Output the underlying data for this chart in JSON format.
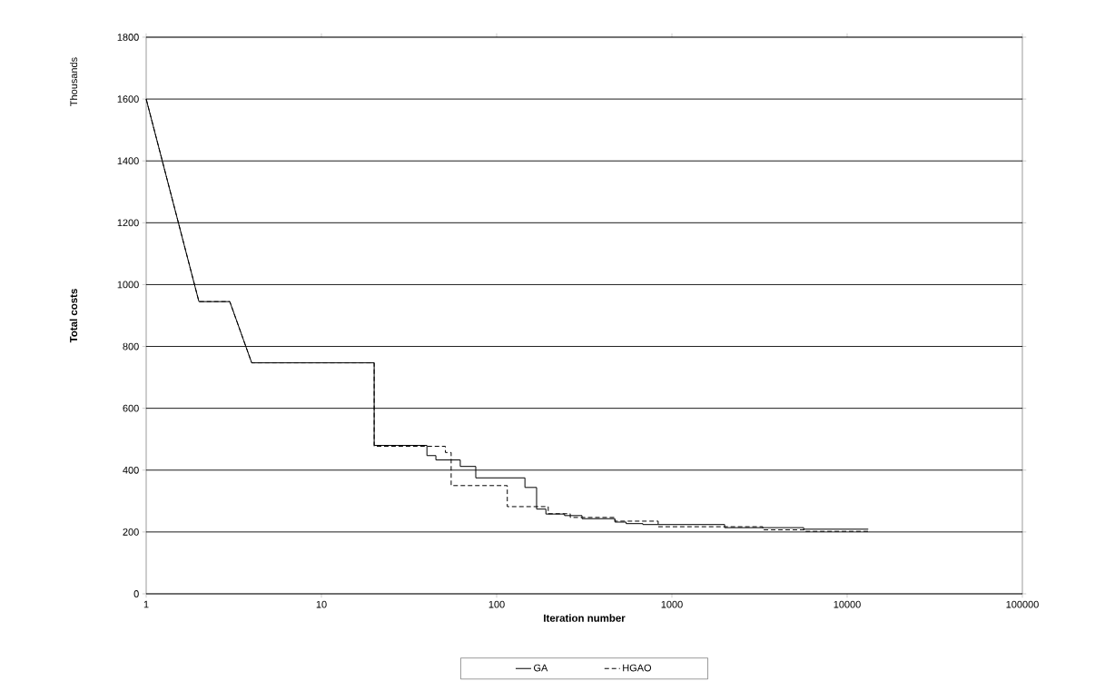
{
  "chart_data": {
    "type": "line",
    "xlabel": "Iteration number",
    "ylabel": "Total costs",
    "annotations": [
      "Thousands"
    ],
    "log": "x",
    "xlim": [
      1,
      100000
    ],
    "xticks": [
      1,
      10,
      100,
      1000,
      10000,
      100000
    ],
    "ylim": [
      0,
      1800
    ],
    "yticks": [
      0,
      200,
      400,
      600,
      800,
      1000,
      1200,
      1400,
      1600,
      1800
    ],
    "grid": "y",
    "legend": "bottom",
    "marker": "none",
    "series": [
      {
        "name": "GA",
        "color": "#000000",
        "line_style": "solid",
        "x": [
          1,
          2,
          3,
          4,
          20,
          20,
          40,
          40,
          45,
          45,
          62,
          62,
          76,
          76,
          145,
          145,
          169,
          169,
          191,
          191,
          244,
          244,
          307,
          307,
          473,
          473,
          548,
          548,
          683,
          683,
          2000,
          2000,
          5650,
          5650,
          13200
        ],
        "values": [
          1600,
          945,
          945,
          747,
          747,
          480,
          480,
          447,
          447,
          433,
          433,
          412,
          412,
          375,
          375,
          344,
          344,
          274,
          274,
          258,
          258,
          253,
          253,
          243,
          243,
          232,
          232,
          227,
          227,
          224,
          224,
          214,
          214,
          209,
          209
        ]
      },
      {
        "name": "HGAO",
        "color": "#000000",
        "line_style": "dashed",
        "x": [
          1,
          2,
          3,
          4,
          20,
          20,
          51,
          51,
          55,
          55,
          115,
          115,
          197,
          197,
          263,
          263,
          473,
          473,
          835,
          835,
          3300,
          3300,
          5760,
          5760,
          13200
        ],
        "values": [
          1600,
          945,
          945,
          747,
          747,
          477,
          477,
          457,
          457,
          350,
          350,
          282,
          282,
          259,
          259,
          247,
          247,
          235,
          235,
          217,
          217,
          207,
          207,
          202,
          202
        ]
      }
    ]
  }
}
